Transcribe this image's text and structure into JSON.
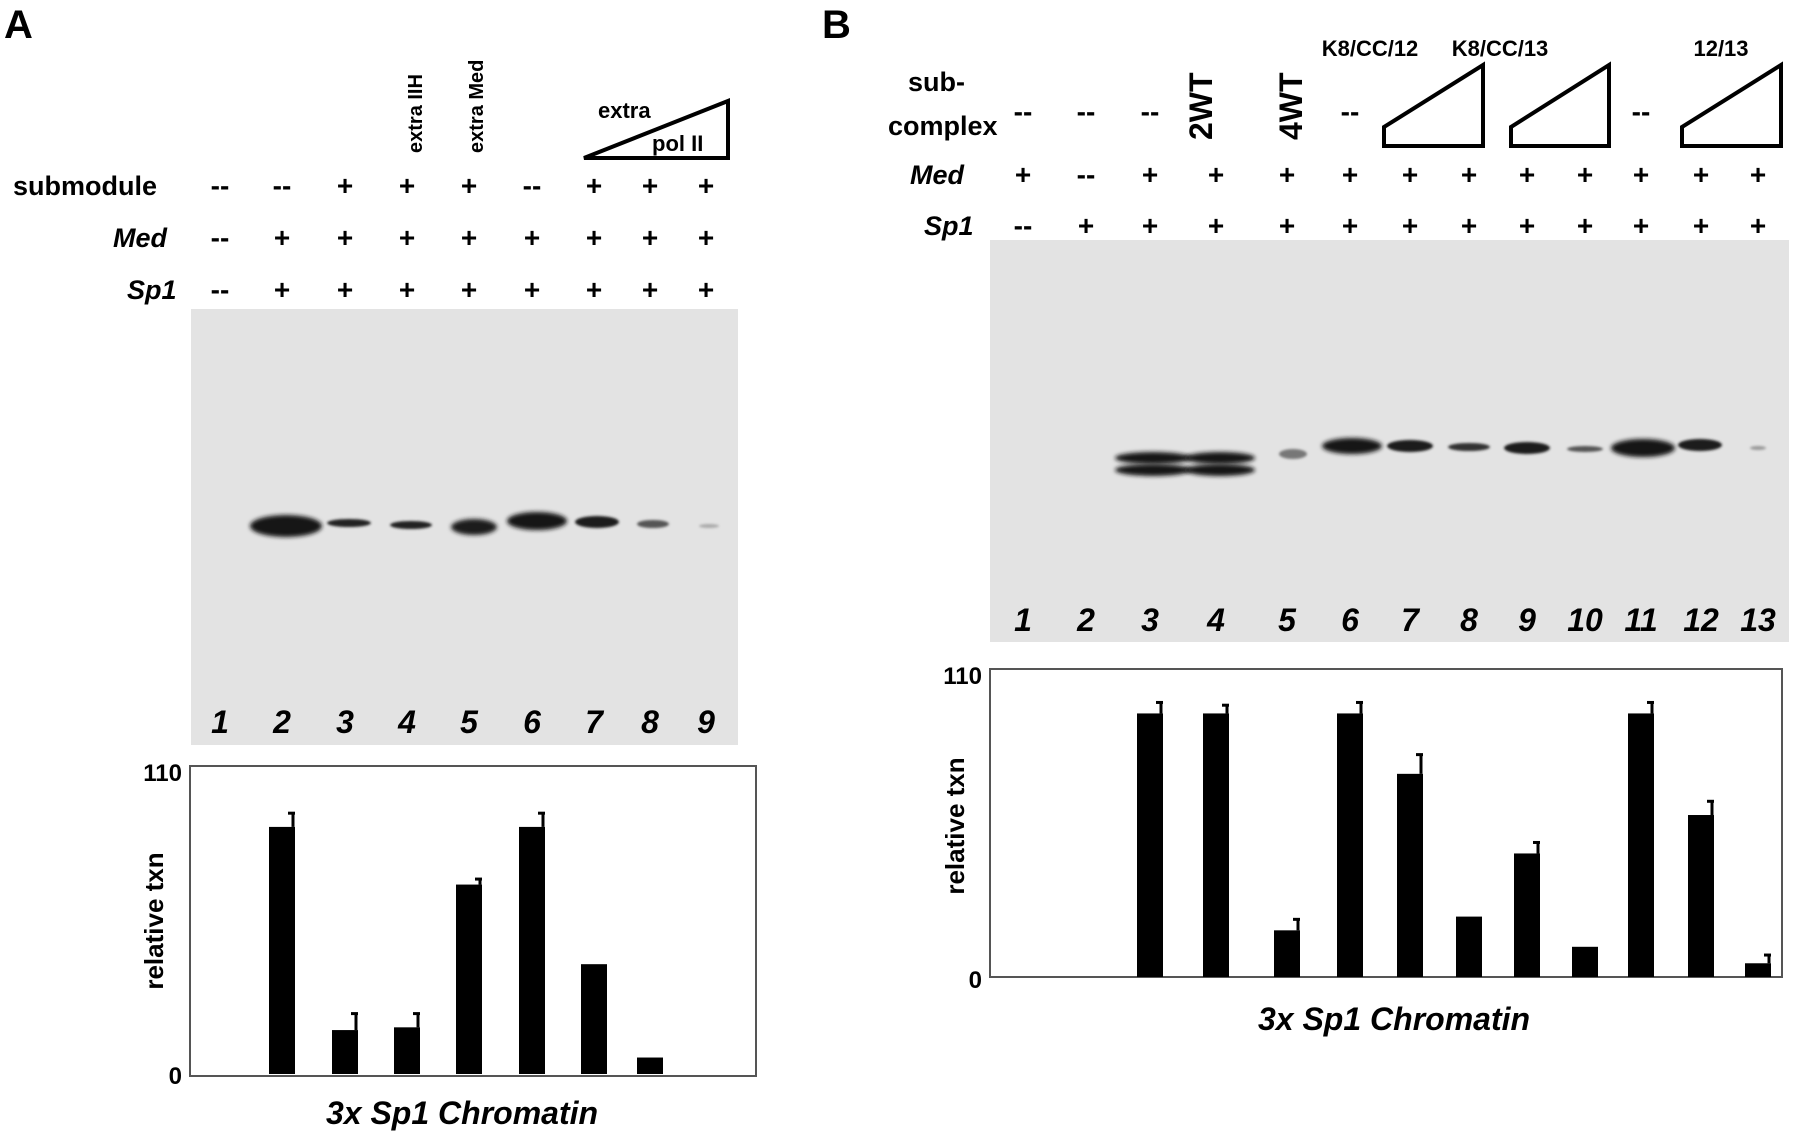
{
  "figure": {
    "panelA": {
      "label": "A",
      "rows": [
        {
          "label": "submodule",
          "italic": false,
          "values": [
            "--",
            "--",
            "+",
            "+",
            "+",
            "--",
            "+",
            "+",
            "+"
          ]
        },
        {
          "label": "Med",
          "italic": true,
          "values": [
            "--",
            "+",
            "+",
            "+",
            "+",
            "+",
            "+",
            "+",
            "+"
          ]
        },
        {
          "label": "Sp1",
          "italic": true,
          "values": [
            "--",
            "+",
            "+",
            "+",
            "+",
            "+",
            "+",
            "+",
            "+"
          ]
        }
      ],
      "top_labels": {
        "lane4": "extra IIH",
        "lane5": "extra Med"
      },
      "triangle": {
        "top_text": "extra",
        "bottom_text": "pol II"
      },
      "lanes": [
        "1",
        "2",
        "3",
        "4",
        "5",
        "6",
        "7",
        "8",
        "9"
      ]
    },
    "panelB": {
      "label": "B",
      "rows": [
        {
          "label": "Med",
          "italic": true,
          "values": [
            "+",
            "--",
            "+",
            "+",
            "+",
            "+",
            "+",
            "+",
            "+",
            "+",
            "+",
            "+",
            "+"
          ]
        },
        {
          "label": "Sp1",
          "italic": true,
          "values": [
            "--",
            "+",
            "+",
            "+",
            "+",
            "+",
            "+",
            "+",
            "+",
            "+",
            "+",
            "+",
            "+"
          ]
        }
      ],
      "subcomplex_label_1": "sub-",
      "subcomplex_label_2": "complex",
      "subcomplex_dashes": [
        "--",
        "--",
        "--",
        "--",
        "--"
      ],
      "big_labels": {
        "lane4": "2WT",
        "lane5": "4WT"
      },
      "group_labels": {
        "g1": "K8/CC/12",
        "g2": "K8/CC/13",
        "g3": "12/13"
      },
      "lanes": [
        "1",
        "2",
        "3",
        "4",
        "5",
        "6",
        "7",
        "8",
        "9",
        "10",
        "11",
        "12",
        "13"
      ]
    }
  },
  "chart_data": [
    {
      "type": "bar",
      "panel": "A",
      "categories": [
        "1",
        "2",
        "3",
        "4",
        "5",
        "6",
        "7",
        "8",
        "9"
      ],
      "values": [
        0,
        90,
        16,
        17,
        69,
        90,
        40,
        6,
        0
      ],
      "errors": [
        0,
        5,
        6,
        5,
        2,
        5,
        0,
        0,
        0
      ],
      "ylim": [
        0,
        110
      ],
      "yticks": [
        "0",
        "110"
      ],
      "ylabel": "relative txn",
      "xlabel": "3x Sp1 Chromatin"
    },
    {
      "type": "bar",
      "panel": "B",
      "categories": [
        "1",
        "2",
        "3",
        "4",
        "5",
        "6",
        "7",
        "8",
        "9",
        "10",
        "11",
        "12",
        "13"
      ],
      "values": [
        0,
        0,
        96,
        96,
        17,
        96,
        74,
        22,
        45,
        11,
        96,
        59,
        5
      ],
      "errors": [
        0,
        0,
        4,
        3,
        4,
        4,
        7,
        0,
        4,
        0,
        4,
        5,
        3
      ],
      "ylim": [
        0,
        110
      ],
      "yticks": [
        "0",
        "110"
      ],
      "ylabel": "relative txn",
      "xlabel": "3x Sp1 Chromatin"
    }
  ],
  "colors": {
    "bar": "#000000",
    "gel": "#e3e3e3",
    "band": "#141414",
    "frame": "#555555"
  }
}
